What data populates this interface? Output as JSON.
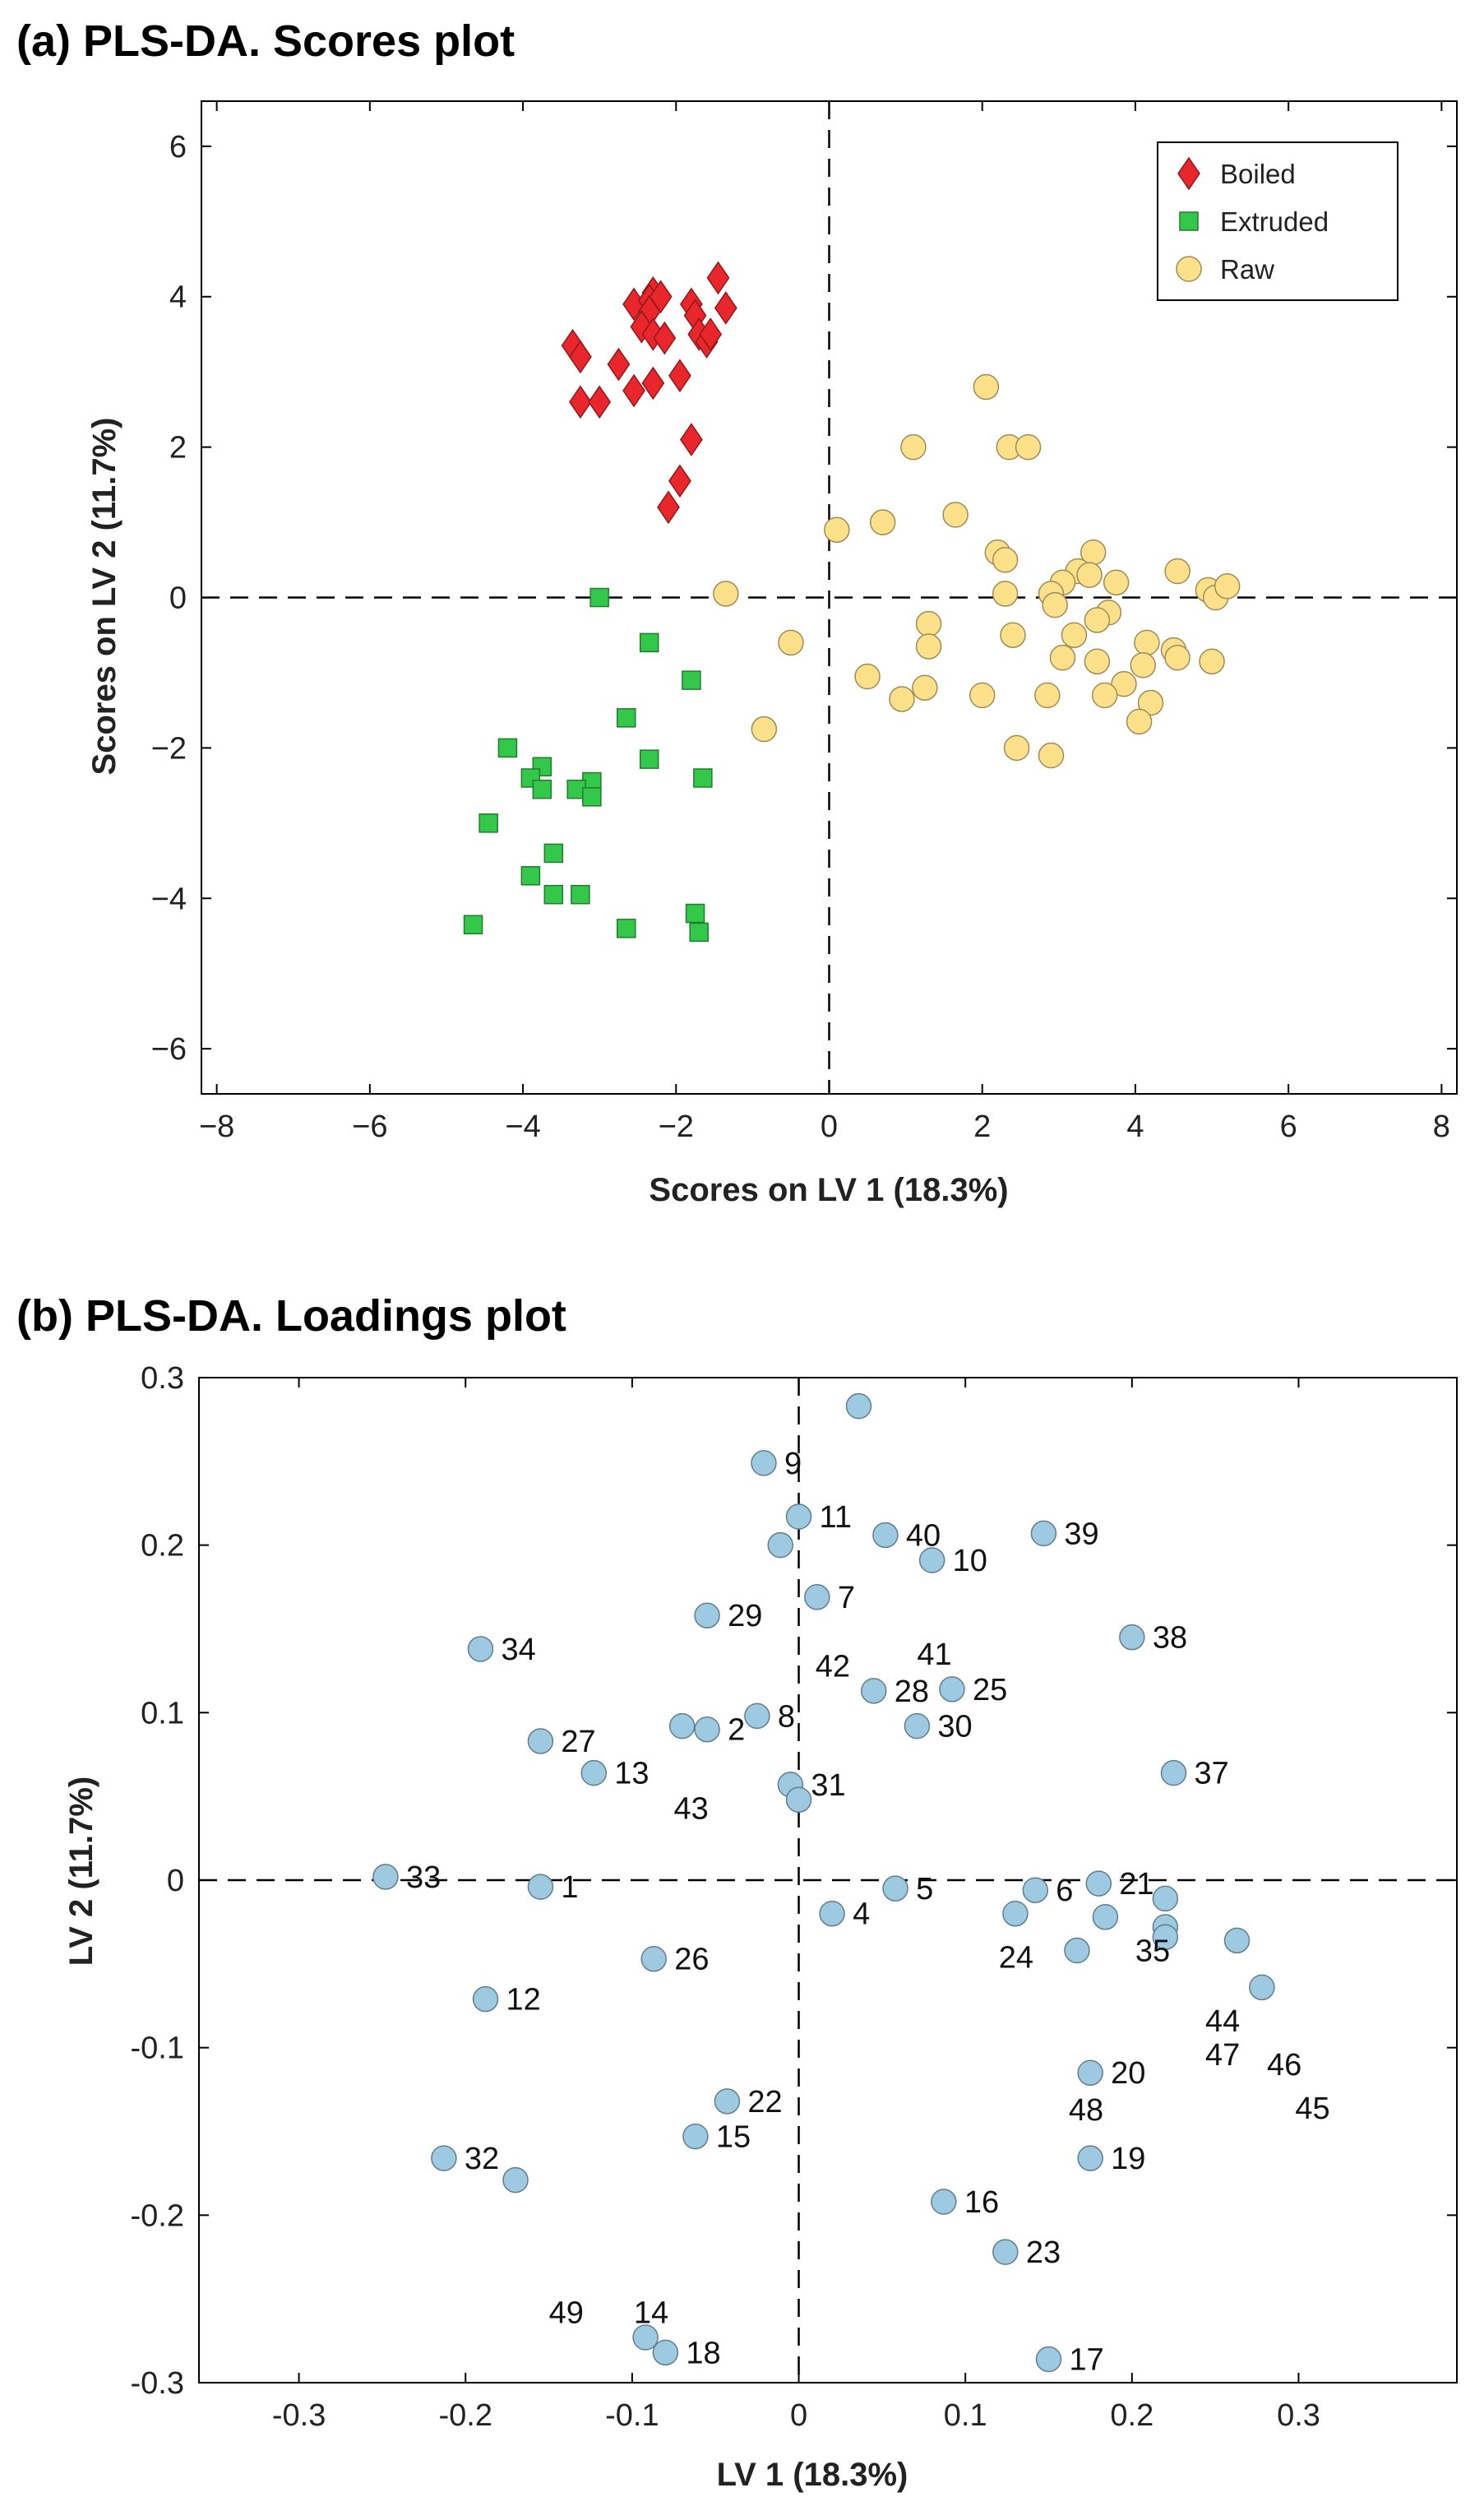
{
  "chart_data": [
    {
      "type": "scatter",
      "title": "(a) PLS-DA. Scores plot",
      "xlabel": "Scores on LV 1 (18.3%)",
      "ylabel": "Scores on LV 2 (11.7%)",
      "xlim": [
        -8.2,
        8.2
      ],
      "ylim": [
        -6.6,
        6.6
      ],
      "xticks": [
        -8,
        -6,
        -4,
        -2,
        0,
        2,
        4,
        6,
        8
      ],
      "xtick_labels": [
        "−8",
        "−6",
        "−4",
        "−2",
        "0",
        "2",
        "4",
        "6",
        "8"
      ],
      "yticks": [
        -6,
        -4,
        -2,
        0,
        2,
        4,
        6
      ],
      "ytick_labels": [
        "−6",
        "−4",
        "−2",
        "0",
        "2",
        "4",
        "6"
      ],
      "zero_lines": true,
      "grid": false,
      "legend_position": "top-right",
      "series": [
        {
          "name": "Boiled",
          "marker": "diamond",
          "color": "#e8262b",
          "points": [
            [
              -1.45,
              4.25
            ],
            [
              -2.55,
              3.9
            ],
            [
              -2.3,
              4.05
            ],
            [
              -2.35,
              3.95
            ],
            [
              -2.2,
              4.0
            ],
            [
              -2.35,
              3.8
            ],
            [
              -1.8,
              3.9
            ],
            [
              -1.75,
              3.75
            ],
            [
              -1.35,
              3.85
            ],
            [
              -2.45,
              3.6
            ],
            [
              -2.3,
              3.5
            ],
            [
              -2.15,
              3.45
            ],
            [
              -1.7,
              3.5
            ],
            [
              -1.6,
              3.4
            ],
            [
              -3.35,
              3.35
            ],
            [
              -3.25,
              3.2
            ],
            [
              -2.75,
              3.1
            ],
            [
              -1.55,
              3.5
            ],
            [
              -2.3,
              2.85
            ],
            [
              -2.55,
              2.75
            ],
            [
              -1.95,
              2.95
            ],
            [
              -3.25,
              2.6
            ],
            [
              -3.0,
              2.6
            ],
            [
              -1.8,
              2.1
            ],
            [
              -1.95,
              1.55
            ],
            [
              -2.1,
              1.2
            ]
          ]
        },
        {
          "name": "Extruded",
          "marker": "square",
          "color": "#33c84a",
          "points": [
            [
              -3.0,
              0.0
            ],
            [
              -2.35,
              -0.6
            ],
            [
              -1.8,
              -1.1
            ],
            [
              -2.65,
              -1.6
            ],
            [
              -4.2,
              -2.0
            ],
            [
              -2.35,
              -2.15
            ],
            [
              -3.75,
              -2.25
            ],
            [
              -3.9,
              -2.4
            ],
            [
              -3.1,
              -2.45
            ],
            [
              -1.65,
              -2.4
            ],
            [
              -3.3,
              -2.55
            ],
            [
              -3.75,
              -2.55
            ],
            [
              -3.1,
              -2.65
            ],
            [
              -4.45,
              -3.0
            ],
            [
              -3.6,
              -3.4
            ],
            [
              -3.9,
              -3.7
            ],
            [
              -3.25,
              -3.95
            ],
            [
              -3.6,
              -3.95
            ],
            [
              -1.75,
              -4.2
            ],
            [
              -4.65,
              -4.35
            ],
            [
              -2.65,
              -4.4
            ],
            [
              -1.7,
              -4.45
            ]
          ]
        },
        {
          "name": "Raw",
          "marker": "circle",
          "color": "#fde18a",
          "points": [
            [
              2.05,
              2.8
            ],
            [
              1.1,
              2.0
            ],
            [
              2.35,
              2.0
            ],
            [
              2.6,
              2.0
            ],
            [
              1.65,
              1.1
            ],
            [
              0.1,
              0.9
            ],
            [
              0.7,
              1.0
            ],
            [
              2.2,
              0.6
            ],
            [
              2.3,
              0.5
            ],
            [
              3.45,
              0.6
            ],
            [
              3.25,
              0.35
            ],
            [
              3.4,
              0.3
            ],
            [
              3.05,
              0.2
            ],
            [
              3.75,
              0.2
            ],
            [
              4.55,
              0.35
            ],
            [
              4.95,
              0.1
            ],
            [
              5.05,
              0.0
            ],
            [
              5.2,
              0.15
            ],
            [
              2.3,
              0.05
            ],
            [
              2.9,
              0.05
            ],
            [
              2.95,
              -0.1
            ],
            [
              -1.35,
              0.05
            ],
            [
              3.65,
              -0.2
            ],
            [
              3.5,
              -0.3
            ],
            [
              1.3,
              -0.35
            ],
            [
              2.4,
              -0.5
            ],
            [
              3.2,
              -0.5
            ],
            [
              4.15,
              -0.6
            ],
            [
              -0.5,
              -0.6
            ],
            [
              1.3,
              -0.65
            ],
            [
              3.05,
              -0.8
            ],
            [
              4.5,
              -0.7
            ],
            [
              4.55,
              -0.8
            ],
            [
              3.5,
              -0.85
            ],
            [
              4.1,
              -0.9
            ],
            [
              5.0,
              -0.85
            ],
            [
              0.5,
              -1.05
            ],
            [
              3.85,
              -1.15
            ],
            [
              1.25,
              -1.2
            ],
            [
              3.6,
              -1.3
            ],
            [
              0.95,
              -1.35
            ],
            [
              2.0,
              -1.3
            ],
            [
              2.85,
              -1.3
            ],
            [
              4.2,
              -1.4
            ],
            [
              4.05,
              -1.65
            ],
            [
              -0.85,
              -1.75
            ],
            [
              2.45,
              -2.0
            ],
            [
              2.9,
              -2.1
            ]
          ]
        }
      ]
    },
    {
      "type": "scatter",
      "title": "(b) PLS-DA. Loadings plot",
      "xlabel": "LV 1 (18.3%)",
      "ylabel": "LV 2 (11.7%)",
      "xlim": [
        -0.36,
        0.395
      ],
      "ylim": [
        -0.3,
        0.3
      ],
      "xticks": [
        -0.3,
        -0.2,
        -0.1,
        0,
        0.1,
        0.2,
        0.3
      ],
      "xtick_labels": [
        "-0.3",
        "-0.2",
        "-0.1",
        "0",
        "0.1",
        "0.2",
        "0.3"
      ],
      "yticks": [
        -0.3,
        -0.2,
        -0.1,
        0,
        0.1,
        0.2,
        0.3
      ],
      "ytick_labels": [
        "-0.3",
        "-0.2",
        "-0.1",
        "0",
        "0.1",
        "0.2",
        "0.3"
      ],
      "zero_lines": true,
      "grid": false,
      "marker": "circle",
      "color": "#9ecae1",
      "points": [
        {
          "x": 0.036,
          "y": 0.283,
          "label": ""
        },
        {
          "x": -0.021,
          "y": 0.249,
          "label": "9"
        },
        {
          "x": 0.0,
          "y": 0.217,
          "label": "11"
        },
        {
          "x": -0.011,
          "y": 0.2,
          "label": ""
        },
        {
          "x": 0.052,
          "y": 0.206,
          "label": "40"
        },
        {
          "x": 0.08,
          "y": 0.191,
          "label": "10"
        },
        {
          "x": 0.147,
          "y": 0.207,
          "label": "39"
        },
        {
          "x": 0.011,
          "y": 0.169,
          "label": "7"
        },
        {
          "x": -0.055,
          "y": 0.158,
          "label": "29"
        },
        {
          "x": -0.191,
          "y": 0.138,
          "label": "34"
        },
        {
          "x": 0.2,
          "y": 0.145,
          "label": "38"
        },
        {
          "x": 0.045,
          "y": 0.113,
          "label": "28"
        },
        {
          "x": 0.092,
          "y": 0.114,
          "label": "25"
        },
        {
          "x": -0.155,
          "y": 0.083,
          "label": "27"
        },
        {
          "x": -0.07,
          "y": 0.092,
          "label": ""
        },
        {
          "x": -0.055,
          "y": 0.09,
          "label": "2"
        },
        {
          "x": -0.025,
          "y": 0.098,
          "label": "8"
        },
        {
          "x": 0.071,
          "y": 0.092,
          "label": "30"
        },
        {
          "x": -0.123,
          "y": 0.064,
          "label": "13"
        },
        {
          "x": -0.005,
          "y": 0.057,
          "label": "31"
        },
        {
          "x": 0.0,
          "y": 0.048,
          "label": ""
        },
        {
          "x": 0.225,
          "y": 0.064,
          "label": "37"
        },
        {
          "x": -0.248,
          "y": 0.002,
          "label": "33"
        },
        {
          "x": -0.155,
          "y": -0.004,
          "label": "1"
        },
        {
          "x": 0.058,
          "y": -0.005,
          "label": "5"
        },
        {
          "x": 0.142,
          "y": -0.006,
          "label": "6"
        },
        {
          "x": 0.18,
          "y": -0.002,
          "label": "21"
        },
        {
          "x": 0.02,
          "y": -0.02,
          "label": "4"
        },
        {
          "x": 0.13,
          "y": -0.02,
          "label": ""
        },
        {
          "x": 0.184,
          "y": -0.022,
          "label": ""
        },
        {
          "x": 0.22,
          "y": -0.011,
          "label": ""
        },
        {
          "x": 0.22,
          "y": -0.028,
          "label": ""
        },
        {
          "x": 0.22,
          "y": -0.034,
          "label": ""
        },
        {
          "x": 0.167,
          "y": -0.042,
          "label": ""
        },
        {
          "x": 0.263,
          "y": -0.036,
          "label": ""
        },
        {
          "x": 0.278,
          "y": -0.064,
          "label": ""
        },
        {
          "x": -0.087,
          "y": -0.047,
          "label": "26"
        },
        {
          "x": -0.188,
          "y": -0.071,
          "label": "12"
        },
        {
          "x": 0.175,
          "y": -0.115,
          "label": "20"
        },
        {
          "x": -0.043,
          "y": -0.132,
          "label": "22"
        },
        {
          "x": -0.062,
          "y": -0.153,
          "label": "15"
        },
        {
          "x": 0.175,
          "y": -0.166,
          "label": "19"
        },
        {
          "x": -0.213,
          "y": -0.166,
          "label": "32"
        },
        {
          "x": -0.17,
          "y": -0.179,
          "label": ""
        },
        {
          "x": 0.087,
          "y": -0.192,
          "label": "16"
        },
        {
          "x": 0.124,
          "y": -0.222,
          "label": "23"
        },
        {
          "x": -0.092,
          "y": -0.273,
          "label": ""
        },
        {
          "x": -0.08,
          "y": -0.282,
          "label": "18"
        },
        {
          "x": 0.15,
          "y": -0.286,
          "label": "17"
        }
      ],
      "free_labels": [
        {
          "text": "42",
          "x": 0.01,
          "y": 0.128
        },
        {
          "text": "41",
          "x": 0.071,
          "y": 0.135
        },
        {
          "text": "43",
          "x": -0.075,
          "y": 0.043
        },
        {
          "text": "24",
          "x": 0.12,
          "y": -0.046
        },
        {
          "text": "35",
          "x": 0.202,
          "y": -0.042
        },
        {
          "text": "44",
          "x": 0.244,
          "y": -0.084
        },
        {
          "text": "47",
          "x": 0.244,
          "y": -0.104
        },
        {
          "text": "46",
          "x": 0.281,
          "y": -0.11
        },
        {
          "text": "48",
          "x": 0.162,
          "y": -0.137
        },
        {
          "text": "45",
          "x": 0.298,
          "y": -0.136
        },
        {
          "text": "49",
          "x": -0.15,
          "y": -0.258
        },
        {
          "text": "14",
          "x": -0.099,
          "y": -0.258
        }
      ]
    }
  ]
}
